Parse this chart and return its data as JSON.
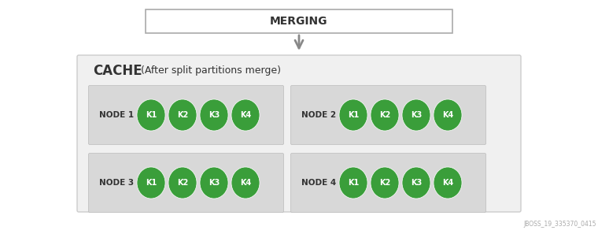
{
  "title": "MERGING",
  "cache_label_bold": "CACHE",
  "cache_label_normal": " (After split partitions merge)",
  "nodes": [
    {
      "label": "NODE 1",
      "keys": [
        "K1",
        "K2",
        "K3",
        "K4"
      ],
      "col": 0,
      "row": 0
    },
    {
      "label": "NODE 2",
      "keys": [
        "K1",
        "K2",
        "K3",
        "K4"
      ],
      "col": 1,
      "row": 0
    },
    {
      "label": "NODE 3",
      "keys": [
        "K1",
        "K2",
        "K3",
        "K4"
      ],
      "col": 0,
      "row": 1
    },
    {
      "label": "NODE 4",
      "keys": [
        "K1",
        "K2",
        "K3",
        "K4"
      ],
      "col": 1,
      "row": 1
    }
  ],
  "bg_color": "#f0f0f0",
  "node_bg_color": "#d8d8d8",
  "green_color": "#3a9e3a",
  "white_text": "#ffffff",
  "dark_text": "#333333",
  "arrow_color": "#888888",
  "border_color": "#cccccc",
  "watermark": "JBOSS_19_335370_0415",
  "fig_bg": "#ffffff"
}
